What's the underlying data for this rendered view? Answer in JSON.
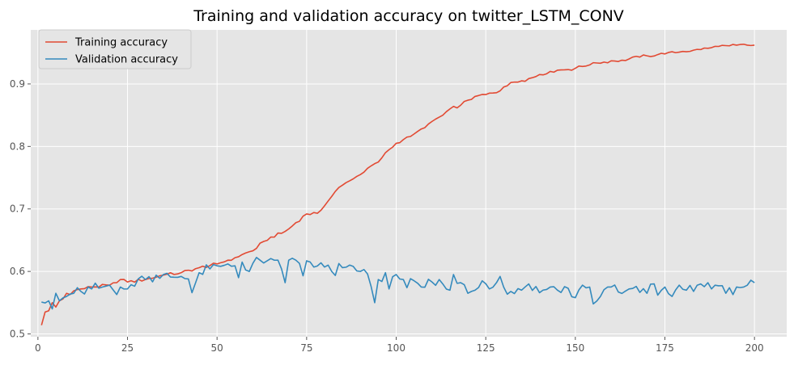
{
  "chart_data": {
    "type": "line",
    "title": "Training and validation accuracy on twitter_LSTM_CONV",
    "xlabel": "",
    "ylabel": "",
    "xlim": [
      -2,
      209
    ],
    "ylim": [
      0.4955,
      0.9865
    ],
    "xticks": [
      0,
      25,
      50,
      75,
      100,
      125,
      150,
      175,
      200
    ],
    "yticks": [
      0.5,
      0.6,
      0.7,
      0.8,
      0.9
    ],
    "grid": true,
    "legend_position": "top-left",
    "colors": {
      "background": "#e5e5e5",
      "grid": "#ffffff",
      "training": "#e24a33",
      "validation": "#348abd"
    },
    "series": [
      {
        "name": "Training accuracy",
        "anchors": [
          [
            1,
            0.514
          ],
          [
            2,
            0.535
          ],
          [
            3,
            0.537
          ],
          [
            4,
            0.55
          ],
          [
            5,
            0.543
          ],
          [
            6,
            0.553
          ],
          [
            7,
            0.556
          ],
          [
            8,
            0.565
          ],
          [
            9,
            0.563
          ],
          [
            10,
            0.569
          ],
          [
            12,
            0.572
          ],
          [
            15,
            0.575
          ],
          [
            20,
            0.578
          ],
          [
            22,
            0.582
          ],
          [
            23,
            0.587
          ],
          [
            25,
            0.583
          ],
          [
            30,
            0.587
          ],
          [
            35,
            0.594
          ],
          [
            40,
            0.598
          ],
          [
            45,
            0.606
          ],
          [
            50,
            0.612
          ],
          [
            55,
            0.622
          ],
          [
            57,
            0.627
          ],
          [
            60,
            0.633
          ],
          [
            63,
            0.648
          ],
          [
            65,
            0.655
          ],
          [
            68,
            0.661
          ],
          [
            70,
            0.668
          ],
          [
            72,
            0.678
          ],
          [
            75,
            0.692
          ],
          [
            78,
            0.693
          ],
          [
            80,
            0.705
          ],
          [
            82,
            0.72
          ],
          [
            83,
            0.728
          ],
          [
            85,
            0.738
          ],
          [
            87,
            0.745
          ],
          [
            90,
            0.755
          ],
          [
            92,
            0.765
          ],
          [
            95,
            0.775
          ],
          [
            97,
            0.79
          ],
          [
            100,
            0.805
          ],
          [
            103,
            0.815
          ],
          [
            105,
            0.82
          ],
          [
            108,
            0.83
          ],
          [
            110,
            0.84
          ],
          [
            113,
            0.85
          ],
          [
            115,
            0.86
          ],
          [
            118,
            0.866
          ],
          [
            120,
            0.874
          ],
          [
            122,
            0.88
          ],
          [
            125,
            0.883
          ],
          [
            128,
            0.886
          ],
          [
            130,
            0.895
          ],
          [
            133,
            0.903
          ],
          [
            135,
            0.905
          ],
          [
            138,
            0.91
          ],
          [
            140,
            0.915
          ],
          [
            143,
            0.92
          ],
          [
            145,
            0.922
          ],
          [
            148,
            0.923
          ],
          [
            150,
            0.925
          ],
          [
            152,
            0.928
          ],
          [
            155,
            0.934
          ],
          [
            158,
            0.935
          ],
          [
            160,
            0.937
          ],
          [
            163,
            0.938
          ],
          [
            165,
            0.94
          ],
          [
            168,
            0.943
          ],
          [
            170,
            0.945
          ],
          [
            173,
            0.947
          ],
          [
            175,
            0.948
          ],
          [
            178,
            0.95
          ],
          [
            180,
            0.952
          ],
          [
            183,
            0.954
          ],
          [
            185,
            0.955
          ],
          [
            188,
            0.958
          ],
          [
            190,
            0.96
          ],
          [
            193,
            0.961
          ],
          [
            195,
            0.962
          ],
          [
            198,
            0.962
          ],
          [
            200,
            0.962
          ]
        ],
        "noise_amp": 0.0025
      },
      {
        "name": "Validation accuracy",
        "anchors": [
          [
            1,
            0.551
          ],
          [
            3,
            0.553
          ],
          [
            4,
            0.54
          ],
          [
            5,
            0.565
          ],
          [
            6,
            0.553
          ],
          [
            8,
            0.56
          ],
          [
            10,
            0.565
          ],
          [
            12,
            0.568
          ],
          [
            15,
            0.572
          ],
          [
            18,
            0.575
          ],
          [
            20,
            0.578
          ],
          [
            22,
            0.563
          ],
          [
            23,
            0.575
          ],
          [
            25,
            0.572
          ],
          [
            28,
            0.588
          ],
          [
            30,
            0.587
          ],
          [
            33,
            0.594
          ],
          [
            35,
            0.595
          ],
          [
            37,
            0.591
          ],
          [
            40,
            0.592
          ],
          [
            42,
            0.588
          ],
          [
            43,
            0.566
          ],
          [
            45,
            0.598
          ],
          [
            48,
            0.604
          ],
          [
            50,
            0.609
          ],
          [
            53,
            0.612
          ],
          [
            55,
            0.609
          ],
          [
            56,
            0.59
          ],
          [
            57,
            0.615
          ],
          [
            59,
            0.6
          ],
          [
            60,
            0.613
          ],
          [
            62,
            0.618
          ],
          [
            64,
            0.617
          ],
          [
            67,
            0.618
          ],
          [
            69,
            0.582
          ],
          [
            70,
            0.618
          ],
          [
            72,
            0.618
          ],
          [
            74,
            0.593
          ],
          [
            75,
            0.617
          ],
          [
            77,
            0.607
          ],
          [
            80,
            0.607
          ],
          [
            82,
            0.6
          ],
          [
            85,
            0.606
          ],
          [
            88,
            0.608
          ],
          [
            90,
            0.6
          ],
          [
            92,
            0.596
          ],
          [
            94,
            0.55
          ],
          [
            95,
            0.587
          ],
          [
            97,
            0.598
          ],
          [
            98,
            0.572
          ],
          [
            100,
            0.595
          ],
          [
            102,
            0.587
          ],
          [
            103,
            0.574
          ],
          [
            105,
            0.585
          ],
          [
            107,
            0.575
          ],
          [
            110,
            0.583
          ],
          [
            113,
            0.58
          ],
          [
            115,
            0.57
          ],
          [
            116,
            0.595
          ],
          [
            118,
            0.582
          ],
          [
            120,
            0.565
          ],
          [
            122,
            0.57
          ],
          [
            124,
            0.585
          ],
          [
            126,
            0.572
          ],
          [
            128,
            0.582
          ],
          [
            129,
            0.592
          ],
          [
            130,
            0.575
          ],
          [
            132,
            0.568
          ],
          [
            135,
            0.57
          ],
          [
            137,
            0.58
          ],
          [
            140,
            0.566
          ],
          [
            143,
            0.575
          ],
          [
            145,
            0.57
          ],
          [
            148,
            0.573
          ],
          [
            150,
            0.558
          ],
          [
            152,
            0.578
          ],
          [
            154,
            0.575
          ],
          [
            155,
            0.548
          ],
          [
            157,
            0.56
          ],
          [
            159,
            0.575
          ],
          [
            160,
            0.575
          ],
          [
            162,
            0.567
          ],
          [
            165,
            0.572
          ],
          [
            167,
            0.576
          ],
          [
            170,
            0.565
          ],
          [
            172,
            0.58
          ],
          [
            173,
            0.562
          ],
          [
            175,
            0.575
          ],
          [
            177,
            0.56
          ],
          [
            179,
            0.578
          ],
          [
            181,
            0.57
          ],
          [
            183,
            0.568
          ],
          [
            185,
            0.58
          ],
          [
            187,
            0.582
          ],
          [
            188,
            0.572
          ],
          [
            190,
            0.577
          ],
          [
            192,
            0.565
          ],
          [
            195,
            0.575
          ],
          [
            197,
            0.575
          ],
          [
            198,
            0.578
          ],
          [
            200,
            0.582
          ]
        ],
        "noise_amp": 0.009
      }
    ]
  }
}
